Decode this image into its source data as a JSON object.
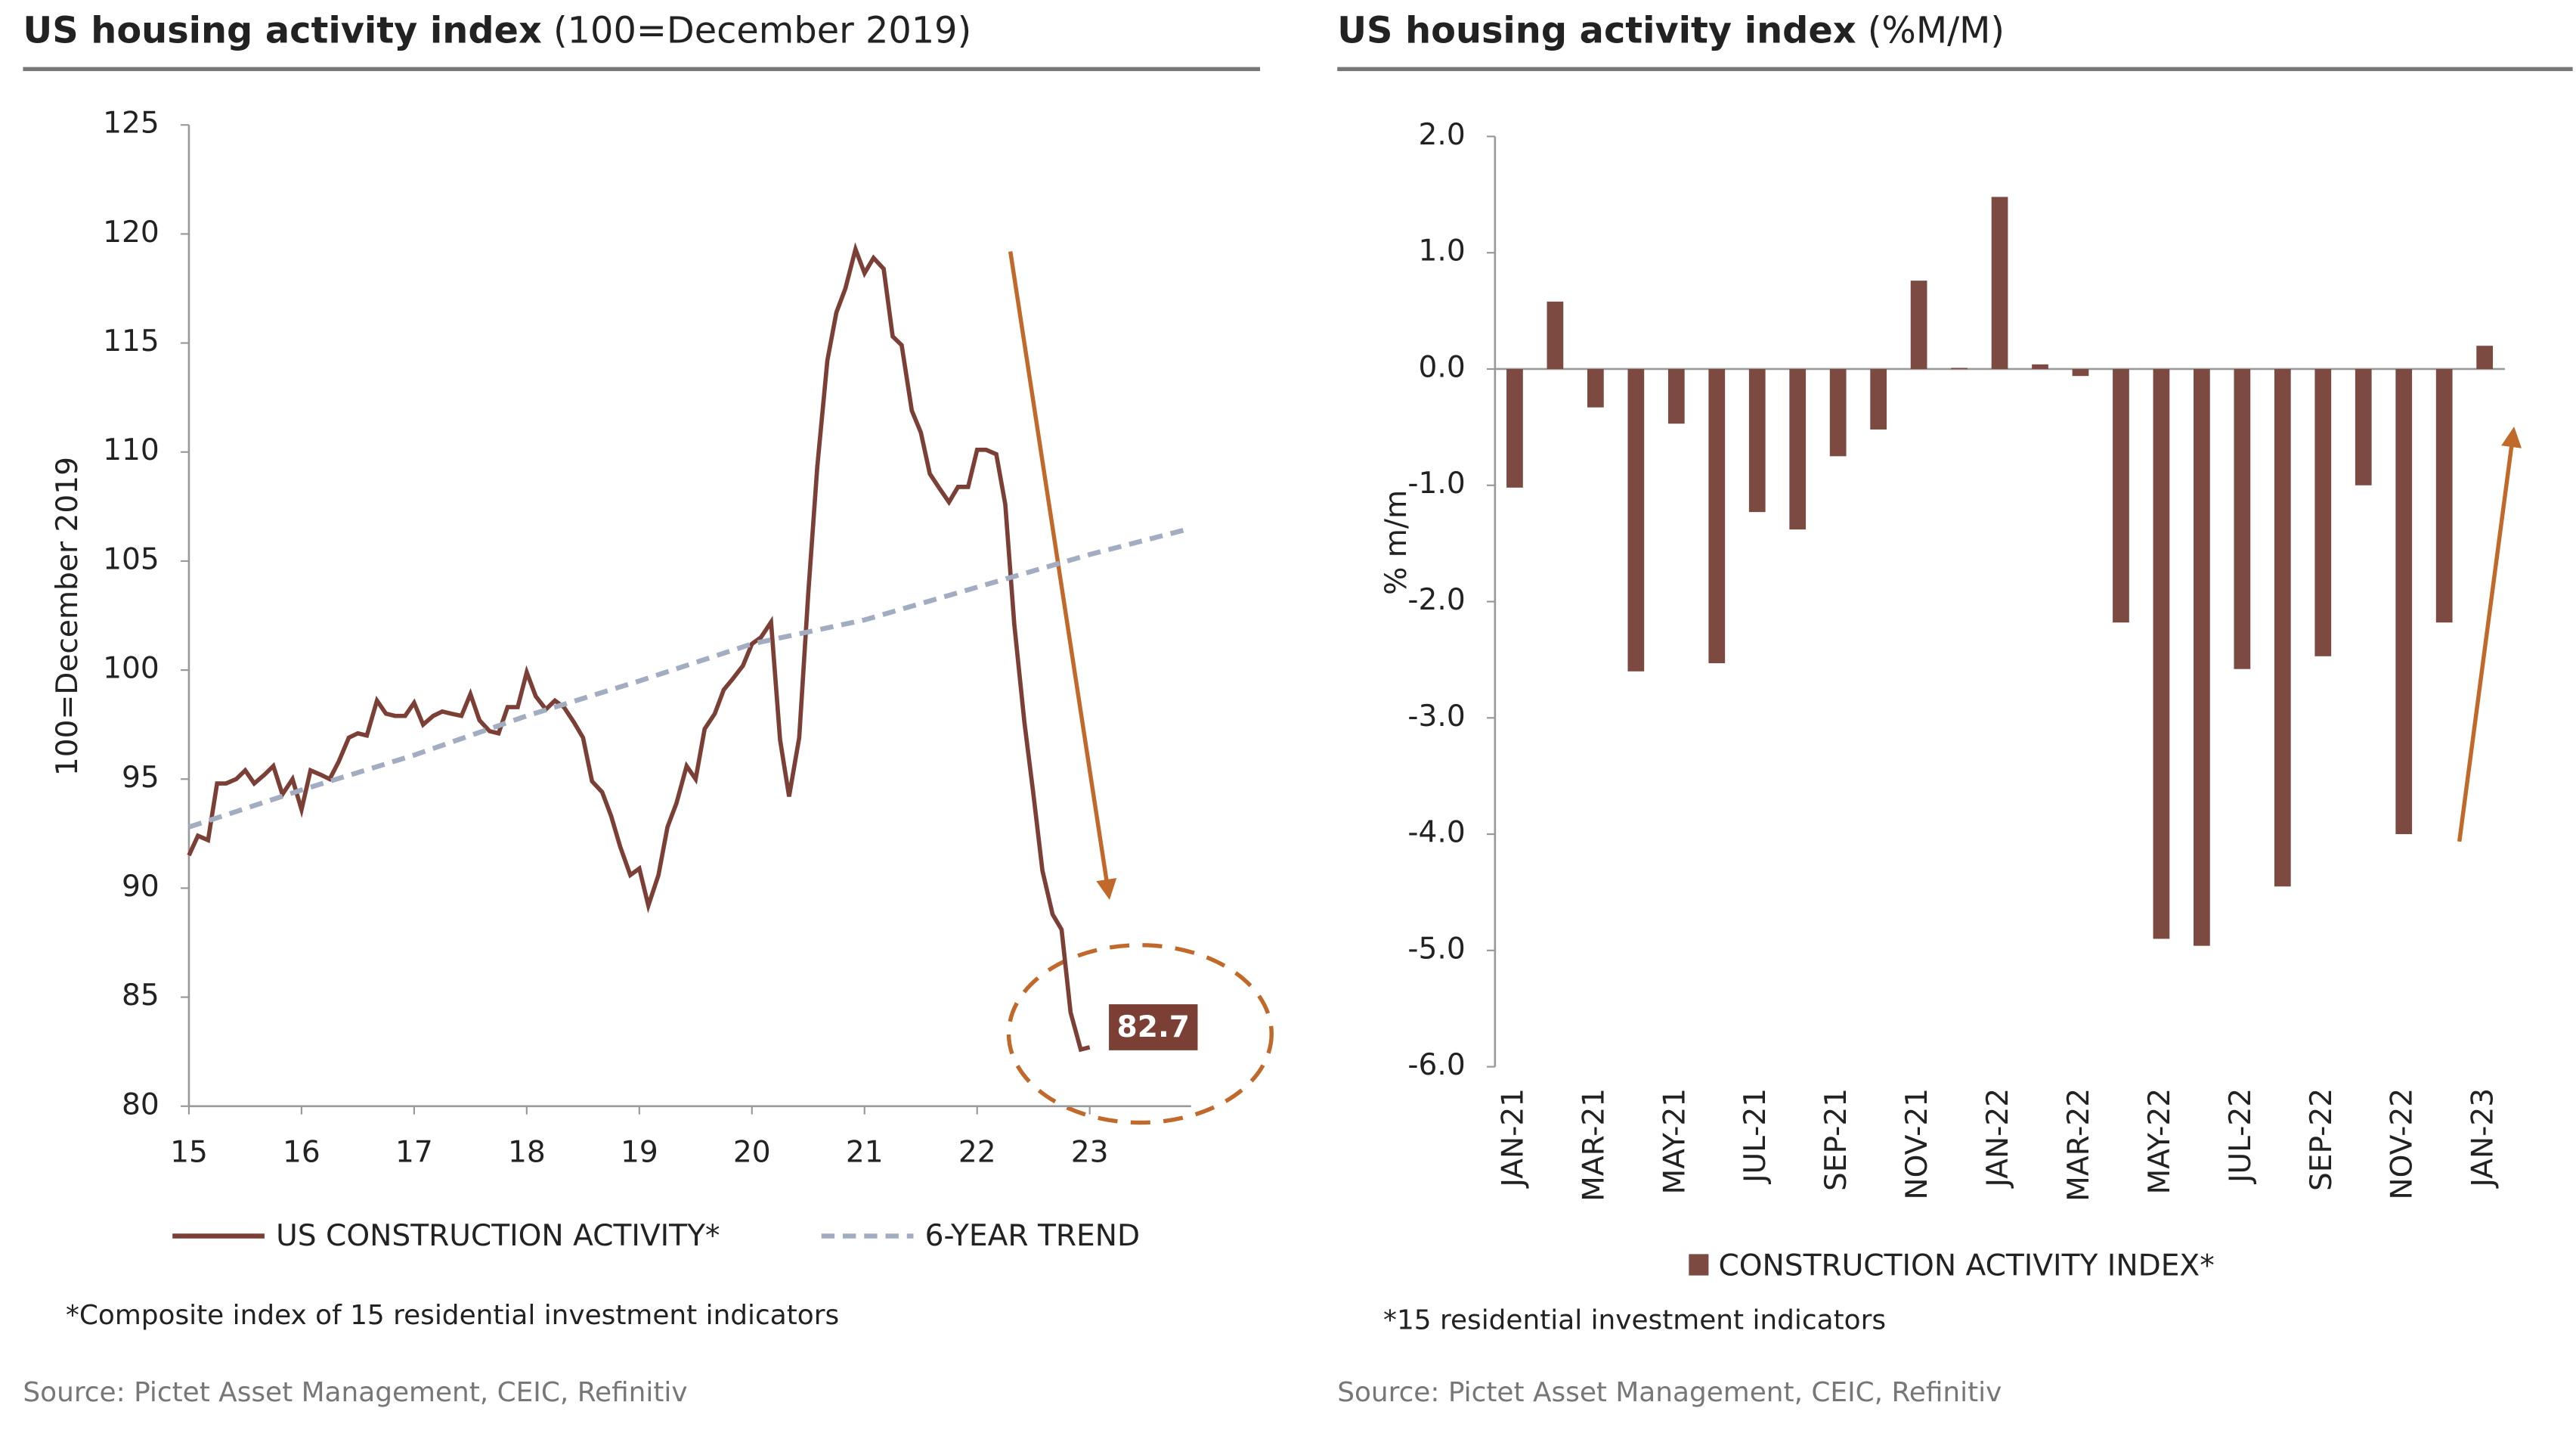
{
  "chart_data": [
    {
      "type": "line",
      "title": "US housing activity index",
      "subtitle": "(100=December 2019)",
      "y_label": "100=December 2019",
      "xlim": [
        15,
        23.9
      ],
      "xticks": [
        15,
        16,
        17,
        18,
        19,
        20,
        21,
        22,
        23
      ],
      "ylim": [
        80,
        125
      ],
      "yticks": [
        80,
        85,
        90,
        95,
        100,
        105,
        110,
        115,
        120,
        125
      ],
      "series": [
        {
          "name": "US CONSTRUCTION ACTIVITY*",
          "color": "#7b3f36",
          "x": [
            15,
            15.08,
            15.17,
            15.25,
            15.33,
            15.42,
            15.5,
            15.58,
            15.67,
            15.75,
            15.83,
            15.92,
            16,
            16.08,
            16.17,
            16.25,
            16.33,
            16.42,
            16.5,
            16.58,
            16.67,
            16.75,
            16.83,
            16.92,
            17,
            17.08,
            17.17,
            17.25,
            17.33,
            17.42,
            17.5,
            17.58,
            17.67,
            17.75,
            17.83,
            17.92,
            18,
            18.08,
            18.17,
            18.25,
            18.33,
            18.42,
            18.5,
            18.58,
            18.67,
            18.75,
            18.83,
            18.92,
            19,
            19.08,
            19.17,
            19.25,
            19.33,
            19.42,
            19.5,
            19.58,
            19.67,
            19.75,
            19.83,
            19.92,
            20,
            20.08,
            20.17,
            20.25,
            20.33,
            20.42,
            20.5,
            20.58,
            20.67,
            20.75,
            20.83,
            20.92,
            21,
            21.08,
            21.17,
            21.25,
            21.33,
            21.42,
            21.5,
            21.58,
            21.67,
            21.75,
            21.83,
            21.92,
            22,
            22.08,
            22.17,
            22.25,
            22.33,
            22.42,
            22.5,
            22.58,
            22.67,
            22.75,
            22.83,
            22.92,
            23
          ],
          "values": [
            91.5,
            92.4,
            92.2,
            94.8,
            94.8,
            95.0,
            95.4,
            94.8,
            95.2,
            95.6,
            94.3,
            95.0,
            93.6,
            95.4,
            95.2,
            95.0,
            95.8,
            96.9,
            97.1,
            97.0,
            98.6,
            98.0,
            97.9,
            97.9,
            98.5,
            97.5,
            97.9,
            98.1,
            98.0,
            97.9,
            98.9,
            97.7,
            97.2,
            97.1,
            98.3,
            98.3,
            99.9,
            98.8,
            98.2,
            98.6,
            98.3,
            97.6,
            96.9,
            94.9,
            94.4,
            93.3,
            91.9,
            90.6,
            90.9,
            89.2,
            90.6,
            92.8,
            93.9,
            95.6,
            95.0,
            97.3,
            98.0,
            99.1,
            99.6,
            100.2,
            101.2,
            101.5,
            102.2,
            96.8,
            94.2,
            96.9,
            103.5,
            109.3,
            114.2,
            116.4,
            117.5,
            119.3,
            118.2,
            118.9,
            118.4,
            115.3,
            114.9,
            111.9,
            110.9,
            109.0,
            108.3,
            107.7,
            108.4,
            108.4,
            110.1,
            110.1,
            109.9,
            107.6,
            102.1,
            97.6,
            94.3,
            90.8,
            88.8,
            88.1,
            84.3,
            82.6,
            82.7
          ]
        },
        {
          "name": "6-YEAR TREND",
          "color": "#a3adc2",
          "dashed": true,
          "x": [
            15,
            16,
            17,
            18,
            19,
            20,
            21,
            22,
            23,
            23.9
          ],
          "values": [
            92.8,
            94.5,
            96.1,
            97.9,
            99.5,
            101.2,
            102.3,
            103.8,
            105.3,
            106.5
          ]
        }
      ],
      "annotation": "82.7",
      "note": "*Composite index of 15 residential investment indicators",
      "source": "Source: Pictet Asset Management, CEIC, Refinitiv"
    },
    {
      "type": "bar",
      "title": "US housing activity index",
      "subtitle": "(%M/M)",
      "y_label": "% m/m",
      "categories": [
        "JAN-21",
        null,
        "MAR-21",
        null,
        "MAY-21",
        null,
        "JUL-21",
        null,
        "SEP-21",
        null,
        "NOV-21",
        null,
        "JAN-22",
        null,
        "MAR-22",
        null,
        "MAY-22",
        null,
        "JUL-22",
        null,
        "SEP-22",
        null,
        "NOV-22",
        null,
        "JAN-23"
      ],
      "series": [
        {
          "name": "CONSTRUCTION ACTIVITY INDEX*",
          "color": "#7d4a42",
          "values": [
            -1.02,
            0.58,
            -0.33,
            -2.6,
            -0.47,
            -2.53,
            -1.23,
            -1.38,
            -0.75,
            -0.52,
            0.76,
            0.01,
            1.48,
            0.04,
            -0.06,
            -2.18,
            -4.9,
            -4.96,
            -2.58,
            -4.45,
            -2.47,
            -1.0,
            -4.0,
            -2.18,
            0.2
          ]
        }
      ],
      "ylim": [
        -6,
        2
      ],
      "yticks": [
        {
          "value": -6,
          "label": "-6.0"
        },
        {
          "value": -5,
          "label": "-5.0"
        },
        {
          "value": -4,
          "label": "-4.0"
        },
        {
          "value": -3,
          "label": "-3.0"
        },
        {
          "value": -2,
          "label": "-2.0"
        },
        {
          "value": -1,
          "label": "-1.0"
        },
        {
          "value": 0,
          "label": "0.0"
        },
        {
          "value": 1,
          "label": "1.0"
        },
        {
          "value": 2,
          "label": "2.0"
        }
      ],
      "note": "*15 residential investment indicators",
      "source": "Source: Pictet Asset Management, CEIC, Refinitiv"
    }
  ]
}
